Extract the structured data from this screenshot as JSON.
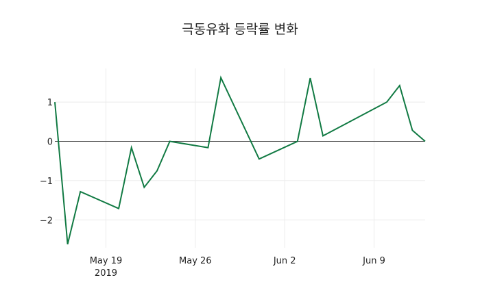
{
  "chart_data": {
    "type": "line",
    "title": "극동유화 등락률 변화",
    "xlabel": "",
    "ylabel": "",
    "x": [
      "2019-05-15",
      "2019-05-16",
      "2019-05-17",
      "2019-05-20",
      "2019-05-21",
      "2019-05-22",
      "2019-05-23",
      "2019-05-24",
      "2019-05-27",
      "2019-05-28",
      "2019-05-31",
      "2019-06-03",
      "2019-06-04",
      "2019-06-05",
      "2019-06-10",
      "2019-06-11",
      "2019-06-12",
      "2019-06-13"
    ],
    "series": [
      {
        "name": "등락률",
        "color": "#117a43",
        "values": [
          1.0,
          -2.62,
          -1.28,
          -1.71,
          -0.16,
          -1.17,
          -0.75,
          0.0,
          -0.16,
          1.62,
          -0.45,
          0.0,
          1.61,
          0.14,
          1.0,
          1.42,
          0.28,
          0.0
        ]
      }
    ],
    "x_ticks": [
      {
        "label": "May 19",
        "sublabel": "2019",
        "date": "2019-05-19"
      },
      {
        "label": "May 26",
        "date": "2019-05-26"
      },
      {
        "label": "Jun 2",
        "date": "2019-06-02"
      },
      {
        "label": "Jun 9",
        "date": "2019-06-09"
      }
    ],
    "y_ticks": [
      {
        "label": "1",
        "value": 1
      },
      {
        "label": "0",
        "value": 0
      },
      {
        "label": "−1",
        "value": -1
      },
      {
        "label": "−2",
        "value": -2
      }
    ],
    "ylim": [
      -2.75,
      1.85
    ],
    "xlim": [
      "2019-05-15",
      "2019-06-13"
    ],
    "grid": true,
    "zero_line": true,
    "legend": "none"
  }
}
